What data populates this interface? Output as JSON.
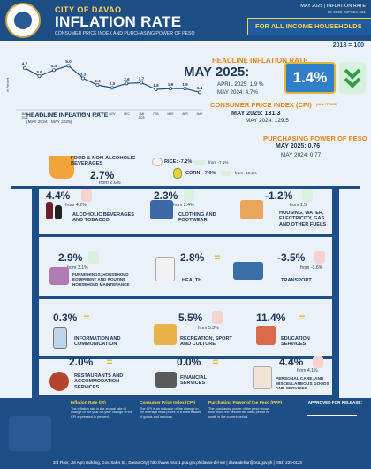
{
  "header": {
    "city": "CITY OF DAVAO",
    "title": "INFLATION RATE",
    "subtitle": "CONSUMER PRICE INDEX AND PURCHASING POWER OF PESO",
    "release": "MAY 2025 | INFLATION RATE",
    "ref_no": "IG-2025-08P024-031",
    "households": "FOR ALL INCOME HOUSEHOLDS",
    "base_year": "2018 = 100"
  },
  "chart_data": {
    "type": "line",
    "title": "HEADLINE INFLATION RATE",
    "subtitle": "(MAY 2024 - MAY 2025)",
    "ylabel": "In Percent",
    "categories": [
      "MAY 2024",
      "JUN",
      "JUL",
      "AUG",
      "SEP",
      "OCT",
      "NOV",
      "DEC",
      "JAN 2025",
      "FEB",
      "MAR",
      "APR",
      "MAY"
    ],
    "tick_labels": [
      [
        "MAY",
        "2024"
      ],
      [
        "JUN"
      ],
      [
        "JUL"
      ],
      [
        "AUG"
      ],
      [
        "SEP"
      ],
      [
        "OCT"
      ],
      [
        "NOV"
      ],
      [
        "DEC"
      ],
      [
        "JAN",
        "2025"
      ],
      [
        "FEB"
      ],
      [
        "MAR"
      ],
      [
        "APR"
      ],
      [
        "MAY"
      ]
    ],
    "values": [
      4.7,
      3.6,
      4.4,
      5.0,
      3.3,
      2.4,
      2.0,
      2.6,
      2.7,
      1.8,
      1.9,
      1.9,
      1.4
    ],
    "value_labels": [
      "4.7",
      "3.6",
      "4.4",
      "5.0",
      "3.3",
      "2.4",
      "2.0",
      "2.6",
      "2.7",
      "1.8",
      "1.9",
      "1.9",
      "1.4"
    ],
    "ylim": [
      0,
      6
    ],
    "color": "#1e4e86"
  },
  "headline": {
    "label": "HEADLINE INFLATION RATE",
    "may2025": "MAY 2025:",
    "rate": "1.4%",
    "april": "APRIL 2025: 1.9 %",
    "may2024": "MAY 2024: 4.7%"
  },
  "cpi": {
    "label": "CONSUMER PRICE INDEX (CPI)",
    "label_small": "(ALL ITEMS)",
    "may2025": "MAY 2025: 131.3",
    "may2024": "MAY 2024: 129.5"
  },
  "ppp": {
    "label": "PURCHASING POWER OF PESO",
    "may2025": "MAY 2025: 0.76",
    "may2024": "MAY 2024: 0.77"
  },
  "food": {
    "label": "FOOD & NON-ALCOHOLIC BEVERAGES",
    "value": "2.7%",
    "from": "from 2.6%",
    "rice_label": "RICE: -7.2%",
    "rice_from": "from -7.1%",
    "corn_label": "CORN: -7.9%",
    "corn_from": "from -10.2%"
  },
  "commodities": [
    {
      "value": "4.4%",
      "from": "from 4.2%",
      "label": "ALCOHOLIC BEVERAGES AND TOBACCO",
      "trend": "up"
    },
    {
      "value": "2.3%",
      "from": "from 2.4%",
      "label": "CLOTHING AND FOOTWEAR",
      "trend": "down"
    },
    {
      "value": "-1.2%",
      "from": "from 1.5",
      "label": "HOUSING, WATER, ELECTRICITY, GAS AND OTHER FUELS",
      "trend": "down"
    },
    {
      "value": "2.9%",
      "from": "from 3.1%",
      "label": "FURNISHINGS, HOUSEHOLD EQUIPMENT AND ROUTINE HOUSEHOLD MAINTENANCE",
      "trend": "down"
    },
    {
      "value": "2.8%",
      "from": "",
      "label": "HEALTH",
      "trend": "eq"
    },
    {
      "value": "-3.5%",
      "from": "from -3.6%",
      "label": "TRANSPORT",
      "trend": "up"
    },
    {
      "value": "0.3%",
      "from": "",
      "label": "INFORMATION AND COMMUNICATION",
      "trend": "eq"
    },
    {
      "value": "5.5%",
      "from": "from 5.3%",
      "label": "RECREATION, SPORT AND CULTURE",
      "trend": "up"
    },
    {
      "value": "11.4%",
      "from": "",
      "label": "EDUCATION SERVICES",
      "trend": "eq"
    },
    {
      "value": "2.0%",
      "from": "",
      "label": "RESTAURANTS AND ACCOMMODATION SERVICES",
      "trend": "eq"
    },
    {
      "value": "0.0%",
      "from": "",
      "label": "FINANCIAL SERVICES",
      "trend": "eq"
    },
    {
      "value": "4.4%",
      "from": "from 4.1%",
      "label": "PERSONAL CARE, AND MISCELLANEOUS GOODS AND SERVICES",
      "trend": "up"
    }
  ],
  "footer": {
    "def1_title": "Inflation Rate (IR)",
    "def1_text": "The inflation rate is the annual rate of change or the year-on-year change of the CPI expressed in percent.",
    "def2_title": "Consumer Price Index (CPI)",
    "def2_text": "The CPI is an indicator of the change in the average retail prices of a fixed basket of goods and services.",
    "def3_title": "Purchasing Power of the Peso (PPP)",
    "def3_text": "The purchasing power of the peso shows how much the peso in the base period is worth in the current period.",
    "approved": "APPROVED FOR RELEASE:",
    "contact": "3rd Floor, JM Agro Building, Gov. Sales St., Davao City  |  http://www.rsso11.psa.gov.ph/davao-del-sur  |  davaodelsur@psa.gov.ph  |  (082) 225-0123"
  }
}
